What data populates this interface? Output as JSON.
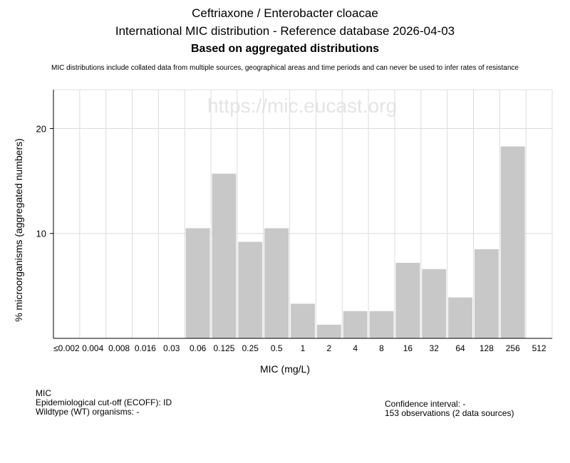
{
  "chart_data": {
    "type": "bar",
    "title_line1": "Ceftriaxone / Enterobacter cloacae",
    "title_line2": "International MIC distribution - Reference database 2026-04-03",
    "subtitle": "Based on aggregated distributions",
    "note": "MIC distributions include collated data from multiple sources, geographical areas and time periods and can never be used to infer rates of resistance",
    "watermark": "https://mic.eucast.org",
    "xlabel": "MIC (mg/L)",
    "ylabel": "% microorganisms (aggregated numbers)",
    "ylim": [
      0,
      23.7
    ],
    "yticks": [
      10,
      20
    ],
    "grid": true,
    "bar_color": "#c8c8c8",
    "categories": [
      "≤0.002",
      "0.004",
      "0.008",
      "0.016",
      "0.03",
      "0.06",
      "0.125",
      "0.25",
      "0.5",
      "1",
      "2",
      "4",
      "8",
      "16",
      "32",
      "64",
      "128",
      "256",
      "512"
    ],
    "values": [
      0,
      0,
      0,
      0,
      0,
      10.5,
      15.7,
      9.2,
      10.5,
      3.3,
      1.3,
      2.6,
      2.6,
      7.2,
      6.6,
      3.9,
      8.5,
      18.3,
      0
    ]
  },
  "footer": {
    "mic_label": "MIC",
    "ecoff": "Epidemiological cut-off (ECOFF): ID",
    "wildtype": "Wildtype (WT) organisms:  -",
    "confidence": "Confidence interval: -",
    "observations": "153 observations (2 data sources)"
  }
}
